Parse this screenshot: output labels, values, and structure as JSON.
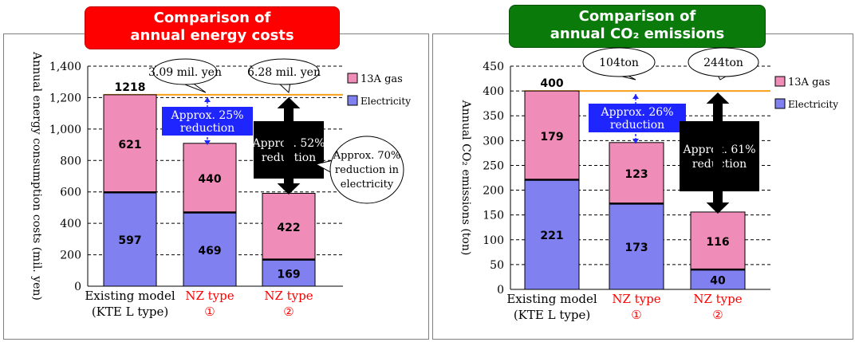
{
  "banners": {
    "costs": [
      "Comparison of",
      "annual energy costs"
    ],
    "co2": [
      "Comparison of",
      "annual CO₂ emissions"
    ]
  },
  "colors": {
    "gas": "#ef8db8",
    "electricity": "#8080f0",
    "reference_line": "#f7a11a",
    "approx_blue": "#1f25ff"
  },
  "chart_data": [
    {
      "type": "bar",
      "stacked": true,
      "ylabel": "Annual energy consumption costs (mil. yen)",
      "ylim": [
        0,
        1400
      ],
      "yticks": [
        "0",
        "200",
        "400",
        "600",
        "800",
        "1,000",
        "1,200",
        "1,400"
      ],
      "grid": "dashed",
      "categories": [
        [
          "Existing model",
          "(KTE L type)"
        ],
        [
          "NZ type",
          "①"
        ],
        [
          "NZ type",
          "②"
        ]
      ],
      "series": [
        {
          "name": "Electricity",
          "values": [
            597,
            469,
            169
          ]
        },
        {
          "name": "13A gas",
          "values": [
            621,
            440,
            422
          ]
        }
      ],
      "totals": [
        "1218",
        "",
        ""
      ],
      "legend": "top-right",
      "annotations": {
        "callout_1": "3.09 mil. yen",
        "callout_2": "6.28 mil. yen",
        "reduction_1": [
          "Approx. 25%",
          "reduction"
        ],
        "reduction_2": [
          "Approx. 52%",
          "reduction"
        ],
        "electricity_note": [
          "Approx. 70%",
          "reduction in",
          "electricity"
        ]
      }
    },
    {
      "type": "bar",
      "stacked": true,
      "ylabel": "Annual CO₂ emissions (ton)",
      "ylim": [
        0,
        450
      ],
      "yticks": [
        "0",
        "50",
        "100",
        "150",
        "200",
        "250",
        "300",
        "350",
        "400",
        "450"
      ],
      "grid": "dashed",
      "categories": [
        [
          "Existing model",
          "(KTE L type)"
        ],
        [
          "NZ type",
          "①"
        ],
        [
          "NZ type",
          "②"
        ]
      ],
      "series": [
        {
          "name": "Electricity",
          "values": [
            221,
            173,
            40
          ]
        },
        {
          "name": "13A gas",
          "values": [
            179,
            123,
            116
          ]
        }
      ],
      "totals": [
        "400",
        "",
        ""
      ],
      "legend": "top-right",
      "annotations": {
        "callout_1": "104ton",
        "callout_2": "244ton",
        "reduction_1": [
          "Approx. 26%",
          "reduction"
        ],
        "reduction_2": [
          "Approx. 61%",
          "reduction"
        ]
      }
    }
  ]
}
